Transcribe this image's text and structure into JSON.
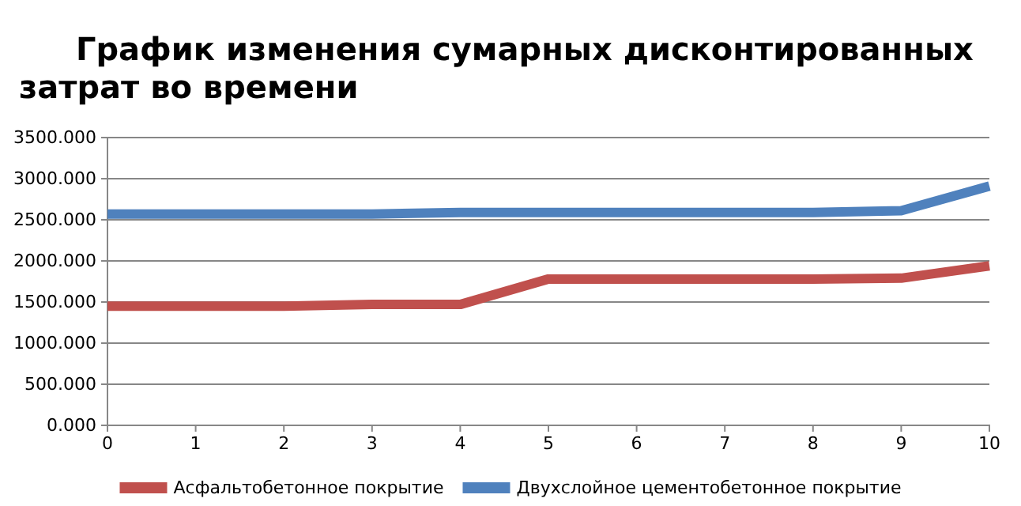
{
  "chart_data": {
    "type": "line",
    "title": "График изменения сумарных дисконтированных затрат во времени",
    "x": [
      0,
      1,
      2,
      3,
      4,
      5,
      6,
      7,
      8,
      9,
      10
    ],
    "series": [
      {
        "name": "Асфальтобетонное покрытие",
        "color": "#c0504d",
        "values": [
          1450,
          1450,
          1450,
          1470,
          1470,
          1780,
          1780,
          1780,
          1780,
          1790,
          1940
        ]
      },
      {
        "name": "Двухслойное цементобетонное покрытие",
        "color": "#4f81bd",
        "values": [
          2570,
          2570,
          2570,
          2570,
          2590,
          2590,
          2590,
          2590,
          2590,
          2610,
          2910
        ]
      }
    ],
    "xlim": [
      0,
      10
    ],
    "xticks": [
      0,
      1,
      2,
      3,
      4,
      5,
      6,
      7,
      8,
      9,
      10
    ],
    "ylim": [
      0,
      3500
    ],
    "yticks": [
      {
        "value": 0,
        "label": "0.000"
      },
      {
        "value": 500,
        "label": "500.000"
      },
      {
        "value": 1000,
        "label": "1000.000"
      },
      {
        "value": 1500,
        "label": "1500.000"
      },
      {
        "value": 2000,
        "label": "2000.000"
      },
      {
        "value": 2500,
        "label": "2500.000"
      },
      {
        "value": 3000,
        "label": "3000.000"
      },
      {
        "value": 3500,
        "label": "3500.000"
      }
    ],
    "grid": "y",
    "legend": "bottom",
    "marker": "none",
    "line_style": "solid"
  }
}
